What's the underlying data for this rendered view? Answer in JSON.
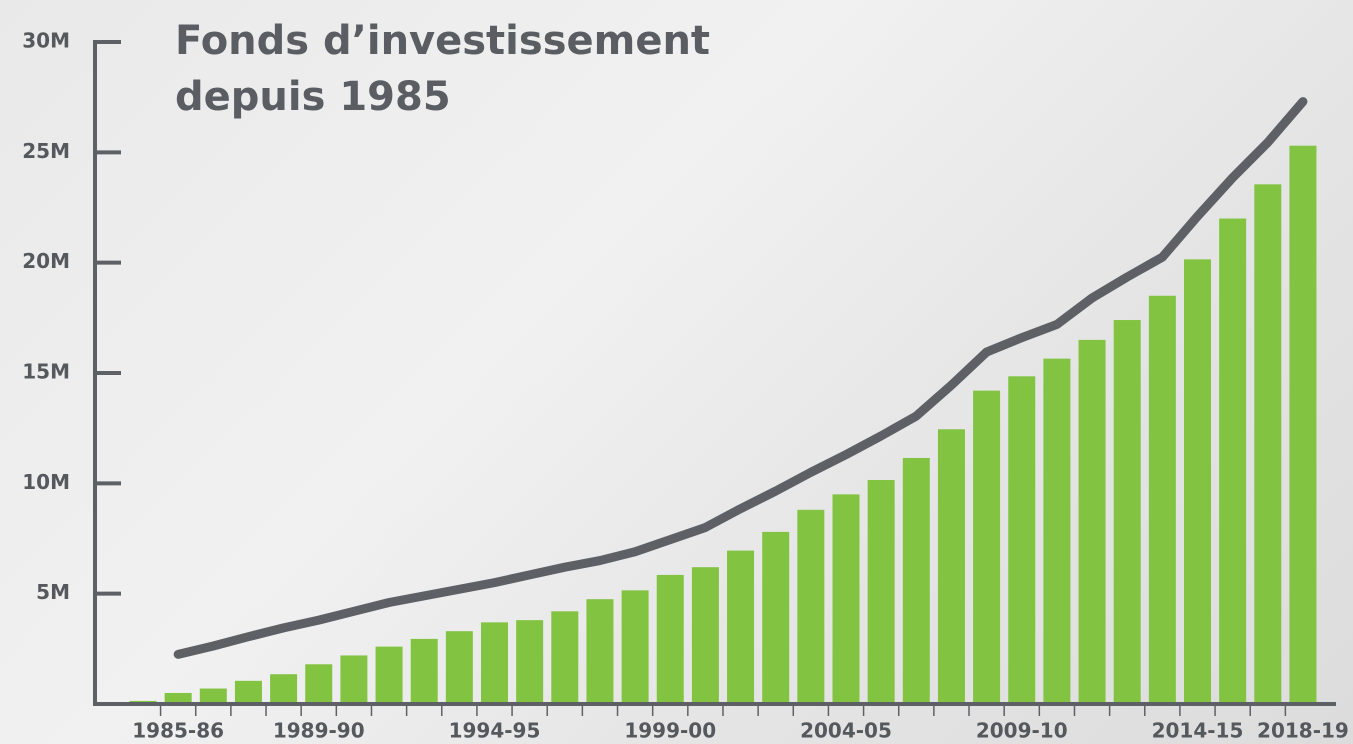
{
  "chart_data": {
    "type": "bar-line",
    "title": [
      "Fonds d’investissement",
      "depuis 1985"
    ],
    "categories": [
      null,
      "1985-86",
      null,
      null,
      null,
      "1989-90",
      null,
      null,
      null,
      null,
      "1994-95",
      null,
      null,
      null,
      null,
      "1999-00",
      null,
      null,
      null,
      null,
      "2004-05",
      null,
      null,
      null,
      null,
      "2009-10",
      null,
      null,
      null,
      null,
      "2014-15",
      null,
      null,
      "2018-19"
    ],
    "series": [
      {
        "type": "bar",
        "color": "#82c341",
        "values": [
          0.14,
          0.5,
          0.7,
          1.05,
          1.35,
          1.8,
          2.2,
          2.6,
          2.95,
          3.3,
          3.7,
          3.8,
          4.2,
          4.75,
          5.15,
          5.85,
          6.2,
          6.95,
          7.8,
          8.8,
          9.5,
          10.15,
          11.15,
          12.45,
          14.2,
          14.85,
          15.65,
          16.5,
          17.4,
          18.5,
          20.15,
          22.0,
          23.55,
          25.3
        ]
      },
      {
        "type": "line",
        "color": "#5d6166",
        "values": [
          null,
          2.25,
          2.63,
          3.05,
          3.45,
          3.8,
          4.2,
          4.6,
          4.9,
          5.2,
          5.5,
          5.85,
          6.2,
          6.5,
          6.9,
          7.45,
          8.0,
          8.85,
          9.65,
          10.5,
          11.3,
          12.15,
          13.05,
          14.45,
          15.95,
          16.6,
          17.2,
          18.4,
          19.35,
          20.25,
          22.1,
          23.85,
          25.45,
          27.3
        ]
      }
    ],
    "ylim": [
      0,
      30
    ],
    "yticks": [
      {
        "value": 5,
        "label": "5M"
      },
      {
        "value": 10,
        "label": "10M"
      },
      {
        "value": 15,
        "label": "15M"
      },
      {
        "value": 20,
        "label": "20M"
      },
      {
        "value": 25,
        "label": "25M"
      },
      {
        "value": 30,
        "label": "30M"
      }
    ],
    "axis_color": "#5d6166"
  }
}
